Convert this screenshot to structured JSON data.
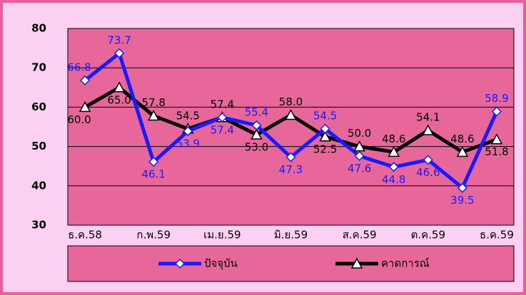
{
  "chart_data": {
    "type": "line",
    "categories": [
      "ธ.ค.58",
      null,
      "ก.พ.59",
      null,
      "เม.ย.59",
      null,
      "มิ.ย.59",
      null,
      "ส.ค.59",
      null,
      "ต.ค.59",
      null,
      "ธ.ค.59"
    ],
    "series": [
      {
        "name": "ปัจจุบัน",
        "color": "#1a1aff",
        "marker": "diamond",
        "values": [
          66.8,
          73.7,
          46.1,
          53.9,
          57.4,
          55.4,
          47.3,
          54.5,
          47.6,
          44.8,
          46.6,
          39.5,
          58.9
        ],
        "value_labels": [
          "66.8",
          "73.7",
          "46.1",
          "53.9",
          "57.4",
          "55.4",
          "47.3",
          "54.5",
          "47.6",
          "44.8",
          "46.6",
          "39.5",
          "58.9"
        ]
      },
      {
        "name": "คาดการณ์",
        "color": "#000000",
        "marker": "triangle",
        "values": [
          60.0,
          65.0,
          57.8,
          54.5,
          57.4,
          53.0,
          58.0,
          52.5,
          50.0,
          48.6,
          54.1,
          48.6,
          51.8
        ],
        "value_labels": [
          "60.0",
          "65.0",
          "57.8",
          "54.5",
          "57.4",
          "53.0",
          "58.0",
          "52.5",
          "50.0",
          "48.6",
          "54.1",
          "48.6",
          "51.8"
        ]
      }
    ],
    "ylim": [
      30,
      80
    ],
    "yticks": [
      30,
      40,
      50,
      60,
      70,
      80
    ],
    "grid": true,
    "legend": "bottom"
  }
}
